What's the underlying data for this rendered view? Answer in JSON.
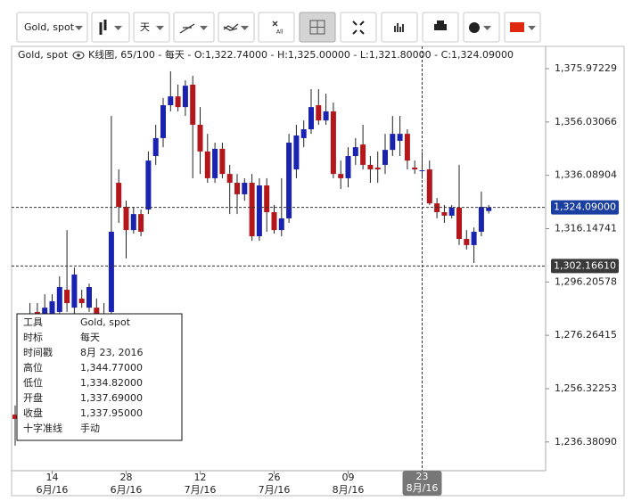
{
  "toolbar": {
    "instrument": "Gold, spot",
    "period": "天",
    "clear_all": "All"
  },
  "header": {
    "instrument": "Gold, spot",
    "summary": "K线图, 65/100 - 每天 - O:1,322.74000 - H:1,325.00000 - L:1,321.80000 - C:1,324.09000"
  },
  "chart_data": {
    "type": "candlestick",
    "categories": [
      null,
      null,
      null,
      null,
      null,
      {
        "day": "14",
        "month": "6月/16"
      },
      null,
      null,
      null,
      null,
      null,
      null,
      null,
      null,
      null,
      {
        "day": "28",
        "month": "6月/16"
      },
      null,
      null,
      null,
      null,
      null,
      null,
      null,
      null,
      null,
      {
        "day": "12",
        "month": "7月/16"
      },
      null,
      null,
      null,
      null,
      null,
      null,
      null,
      null,
      null,
      {
        "day": "26",
        "month": "7月/16"
      },
      null,
      null,
      null,
      null,
      null,
      null,
      null,
      null,
      null,
      {
        "day": "09",
        "month": "8月/16"
      },
      null,
      null,
      null,
      null,
      null,
      null,
      null,
      null,
      null,
      {
        "day": "23",
        "month": "8月/16"
      },
      null,
      null,
      null,
      null,
      null,
      null,
      null,
      null,
      null
    ],
    "open": [
      1246.6,
      1268.3,
      1276.6,
      1285.0,
      1283.3,
      1284.3,
      1285.0,
      1293.3,
      1286.6,
      1290.0,
      1286.6,
      1286.6,
      1277.6,
      1285.0,
      1333.3,
      1324.3,
      1315.6,
      1321.6,
      1323.3,
      1343.3,
      1350.0,
      1362.3,
      1365.6,
      1361.6,
      1370.0,
      1355.0,
      1345.0,
      1335.0,
      1346.0,
      1336.6,
      1333.3,
      1329.0,
      1333.3,
      1313.3,
      1332.3,
      1322.3,
      1315.6,
      1320.0,
      1338.3,
      1350.0,
      1353.3,
      1362.3,
      1356.6,
      1360.0,
      1336.6,
      1335.0,
      1343.3,
      1347.6,
      1340.0,
      1339.0,
      1340.0,
      1345.6,
      1349.0,
      1351.6,
      1339.0,
      1337.69,
      1338.3,
      1325.6,
      1322.3,
      1321.0,
      1324.0,
      1312.3,
      1310.0,
      1315.0,
      1322.74
    ],
    "high": [
      1250.0,
      1278.3,
      1288.3,
      1288.3,
      1291.6,
      1291.6,
      1298.3,
      1315.6,
      1301.6,
      1293.3,
      1295.6,
      1290.0,
      1288.3,
      1358.3,
      1338.3,
      1326.6,
      1324.3,
      1323.3,
      1345.0,
      1355.0,
      1365.0,
      1375.0,
      1370.0,
      1371.6,
      1373.3,
      1361.6,
      1351.6,
      1348.3,
      1348.3,
      1340.0,
      1336.6,
      1335.0,
      1336.6,
      1335.0,
      1335.0,
      1325.0,
      1335.0,
      1351.6,
      1355.0,
      1356.6,
      1368.3,
      1368.3,
      1366.6,
      1363.3,
      1341.6,
      1346.6,
      1350.0,
      1355.0,
      1343.3,
      1345.0,
      1351.6,
      1358.3,
      1358.3,
      1353.3,
      1341.6,
      1344.77,
      1341.6,
      1327.6,
      1325.0,
      1325.0,
      1340.0,
      1315.6,
      1316.6,
      1330.0,
      1325.0
    ],
    "low": [
      1235.0,
      1265.0,
      1273.3,
      1280.0,
      1278.3,
      1281.6,
      1283.3,
      1285.0,
      1284.3,
      1286.6,
      1285.0,
      1275.0,
      1273.3,
      1284.3,
      1318.3,
      1305.0,
      1314.3,
      1313.3,
      1321.6,
      1340.0,
      1346.6,
      1360.0,
      1360.0,
      1358.3,
      1335.0,
      1336.6,
      1333.3,
      1333.3,
      1335.0,
      1321.6,
      1321.6,
      1326.6,
      1311.6,
      1311.6,
      1315.0,
      1314.3,
      1313.3,
      1318.3,
      1335.0,
      1346.6,
      1351.6,
      1355.0,
      1355.0,
      1335.0,
      1331.0,
      1331.6,
      1340.0,
      1338.3,
      1333.3,
      1333.3,
      1336.6,
      1343.3,
      1343.3,
      1338.3,
      1336.6,
      1334.82,
      1325.0,
      1320.0,
      1318.3,
      1320.0,
      1310.0,
      1308.3,
      1303.3,
      1313.3,
      1321.8
    ],
    "close": [
      1245.0,
      1275.0,
      1283.3,
      1283.3,
      1286.6,
      1289.0,
      1294.3,
      1288.3,
      1299.0,
      1288.3,
      1294.3,
      1278.3,
      1284.3,
      1315.0,
      1324.3,
      1315.6,
      1321.6,
      1315.0,
      1341.6,
      1350.0,
      1362.3,
      1365.6,
      1361.6,
      1369.6,
      1355.0,
      1345.0,
      1335.0,
      1346.0,
      1336.6,
      1333.3,
      1329.0,
      1333.3,
      1313.3,
      1332.3,
      1322.3,
      1315.6,
      1320.0,
      1348.3,
      1351.0,
      1353.3,
      1361.6,
      1356.6,
      1360.0,
      1336.6,
      1335.0,
      1343.3,
      1346.6,
      1340.0,
      1338.3,
      1338.3,
      1345.6,
      1351.6,
      1351.6,
      1341.6,
      1338.3,
      1337.95,
      1325.6,
      1322.3,
      1321.0,
      1324.0,
      1312.3,
      1310.0,
      1315.0,
      1324.3,
      1324.09
    ],
    "up_color": "#1a22b0",
    "down_color": "#b3171c",
    "ylim": [
      1225.64,
      1378.31
    ],
    "yticks": [
      {
        "value": 1236.3809,
        "label": "1,236.38090"
      },
      {
        "value": 1256.32253,
        "label": "1,256.32253"
      },
      {
        "value": 1276.26415,
        "label": "1,276.26415"
      },
      {
        "value": 1296.20578,
        "label": "1,296.20578"
      },
      {
        "value": 1316.14741,
        "label": "1,316.14741"
      },
      {
        "value": 1336.08904,
        "label": "1,336.08904"
      },
      {
        "value": 1356.03066,
        "label": "1,356.03066"
      },
      {
        "value": 1375.97229,
        "label": "1,375.97229"
      }
    ],
    "grid": false,
    "last_price": {
      "value": 1324.09,
      "label": "1,324.09000",
      "color": "#1b3fa0"
    },
    "crosshair": {
      "category": 55,
      "price": {
        "value": 1302.1661,
        "label": "1,302.16610"
      },
      "color": "#3a3a3a"
    },
    "tooltip": [
      [
        "工具",
        "Gold, spot"
      ],
      [
        "时标",
        "每天"
      ],
      [
        "时间戳",
        "8月 23, 2016"
      ],
      [
        "高位",
        "1,344.77000"
      ],
      [
        "低位",
        "1,334.82000"
      ],
      [
        "开盘",
        "1,337.69000"
      ],
      [
        "收盘",
        "1,337.95000"
      ],
      [
        "十字准线",
        "手动"
      ]
    ]
  }
}
